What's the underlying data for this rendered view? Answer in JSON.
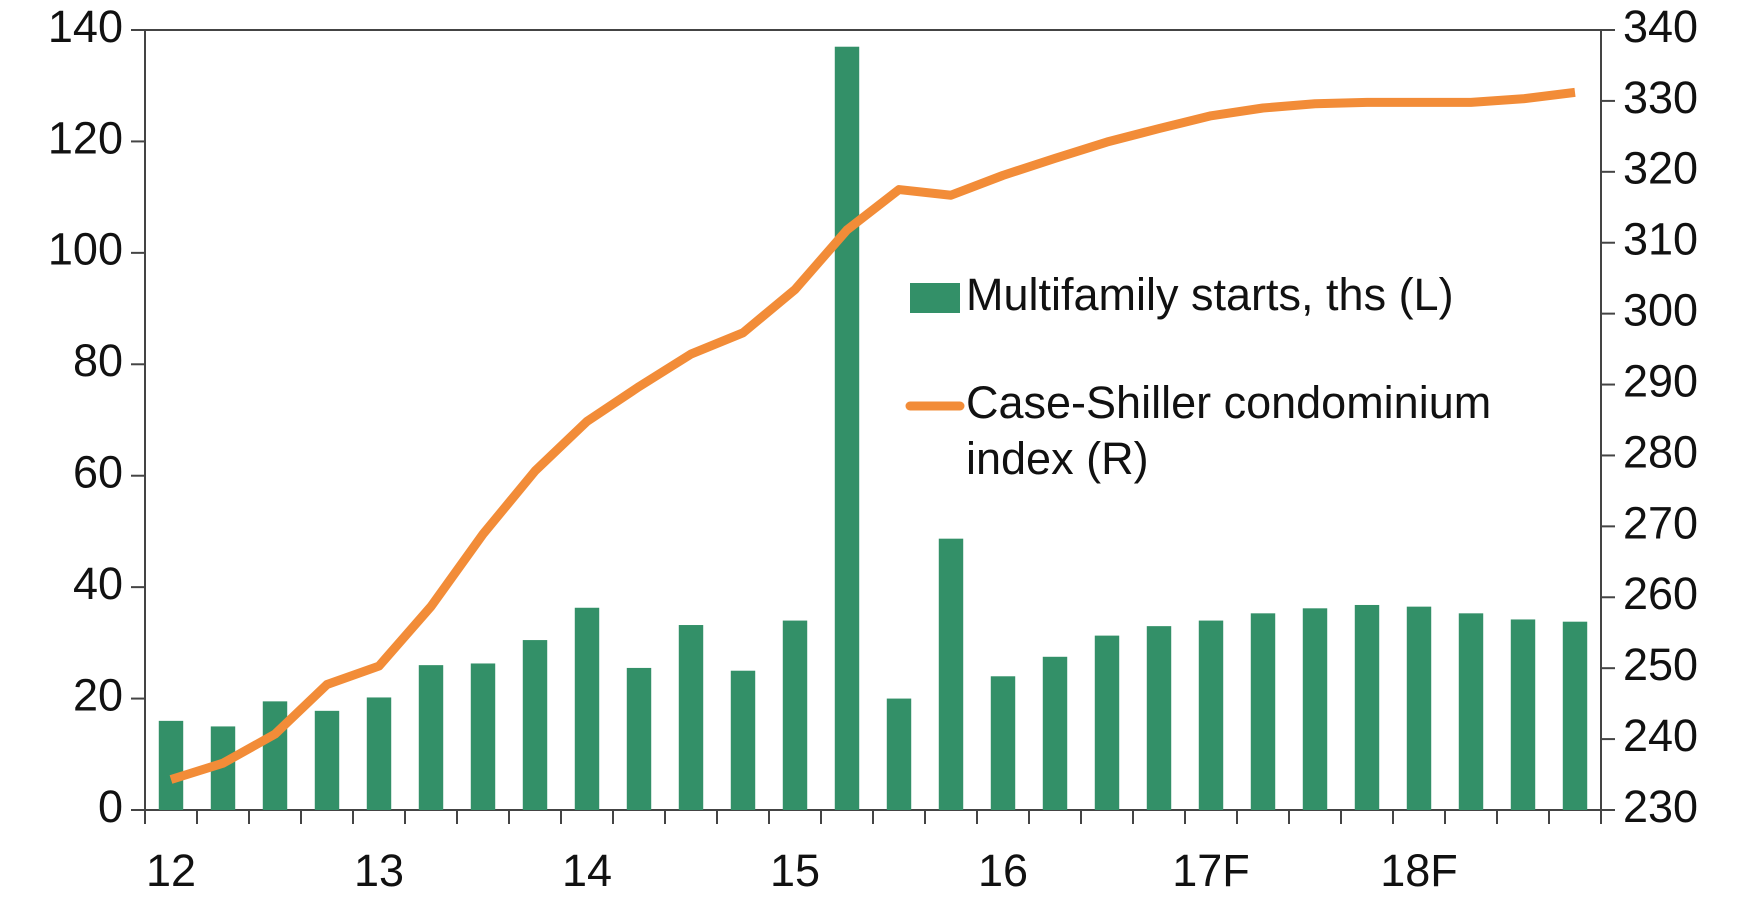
{
  "chart_data": {
    "type": "bar-line",
    "categories": [
      "12",
      null,
      null,
      null,
      "13",
      null,
      null,
      null,
      "14",
      null,
      null,
      null,
      "15",
      null,
      null,
      null,
      "16",
      null,
      null,
      null,
      "17F",
      null,
      null,
      null,
      "18F",
      null,
      null,
      null
    ],
    "series": [
      {
        "name": "Multifamily starts, ths (L)",
        "type": "bar",
        "color": "#339068",
        "axis": "y",
        "values": [
          16,
          15,
          19.5,
          17.8,
          20.2,
          26,
          26.3,
          30.5,
          36.3,
          25.5,
          33.2,
          25,
          34,
          137,
          20,
          48.7,
          24,
          27.5,
          31.3,
          33,
          34,
          35.3,
          36.2,
          36.8,
          36.5,
          35.3,
          34.2,
          33.8
        ]
      },
      {
        "name": "Case-Shiller condominium index (R)",
        "type": "line",
        "color": "#f28c38",
        "axis": "y2",
        "values": [
          234.3,
          236.6,
          240.7,
          247.7,
          250.3,
          258.7,
          268.9,
          277.8,
          284.8,
          289.7,
          294.3,
          297.3,
          303.4,
          311.8,
          317.5,
          316.7,
          319.5,
          321.9,
          324.2,
          326.1,
          327.9,
          329,
          329.6,
          329.8,
          329.8,
          329.8,
          330.3,
          331.2
        ]
      }
    ],
    "ylim": [
      0,
      140
    ],
    "yticks": [
      0,
      20,
      40,
      60,
      80,
      100,
      120,
      140
    ],
    "y2lim": [
      230,
      340
    ],
    "y2ticks": [
      230,
      240,
      250,
      260,
      270,
      280,
      290,
      300,
      310,
      320,
      330,
      340
    ],
    "legend": "center-right"
  }
}
